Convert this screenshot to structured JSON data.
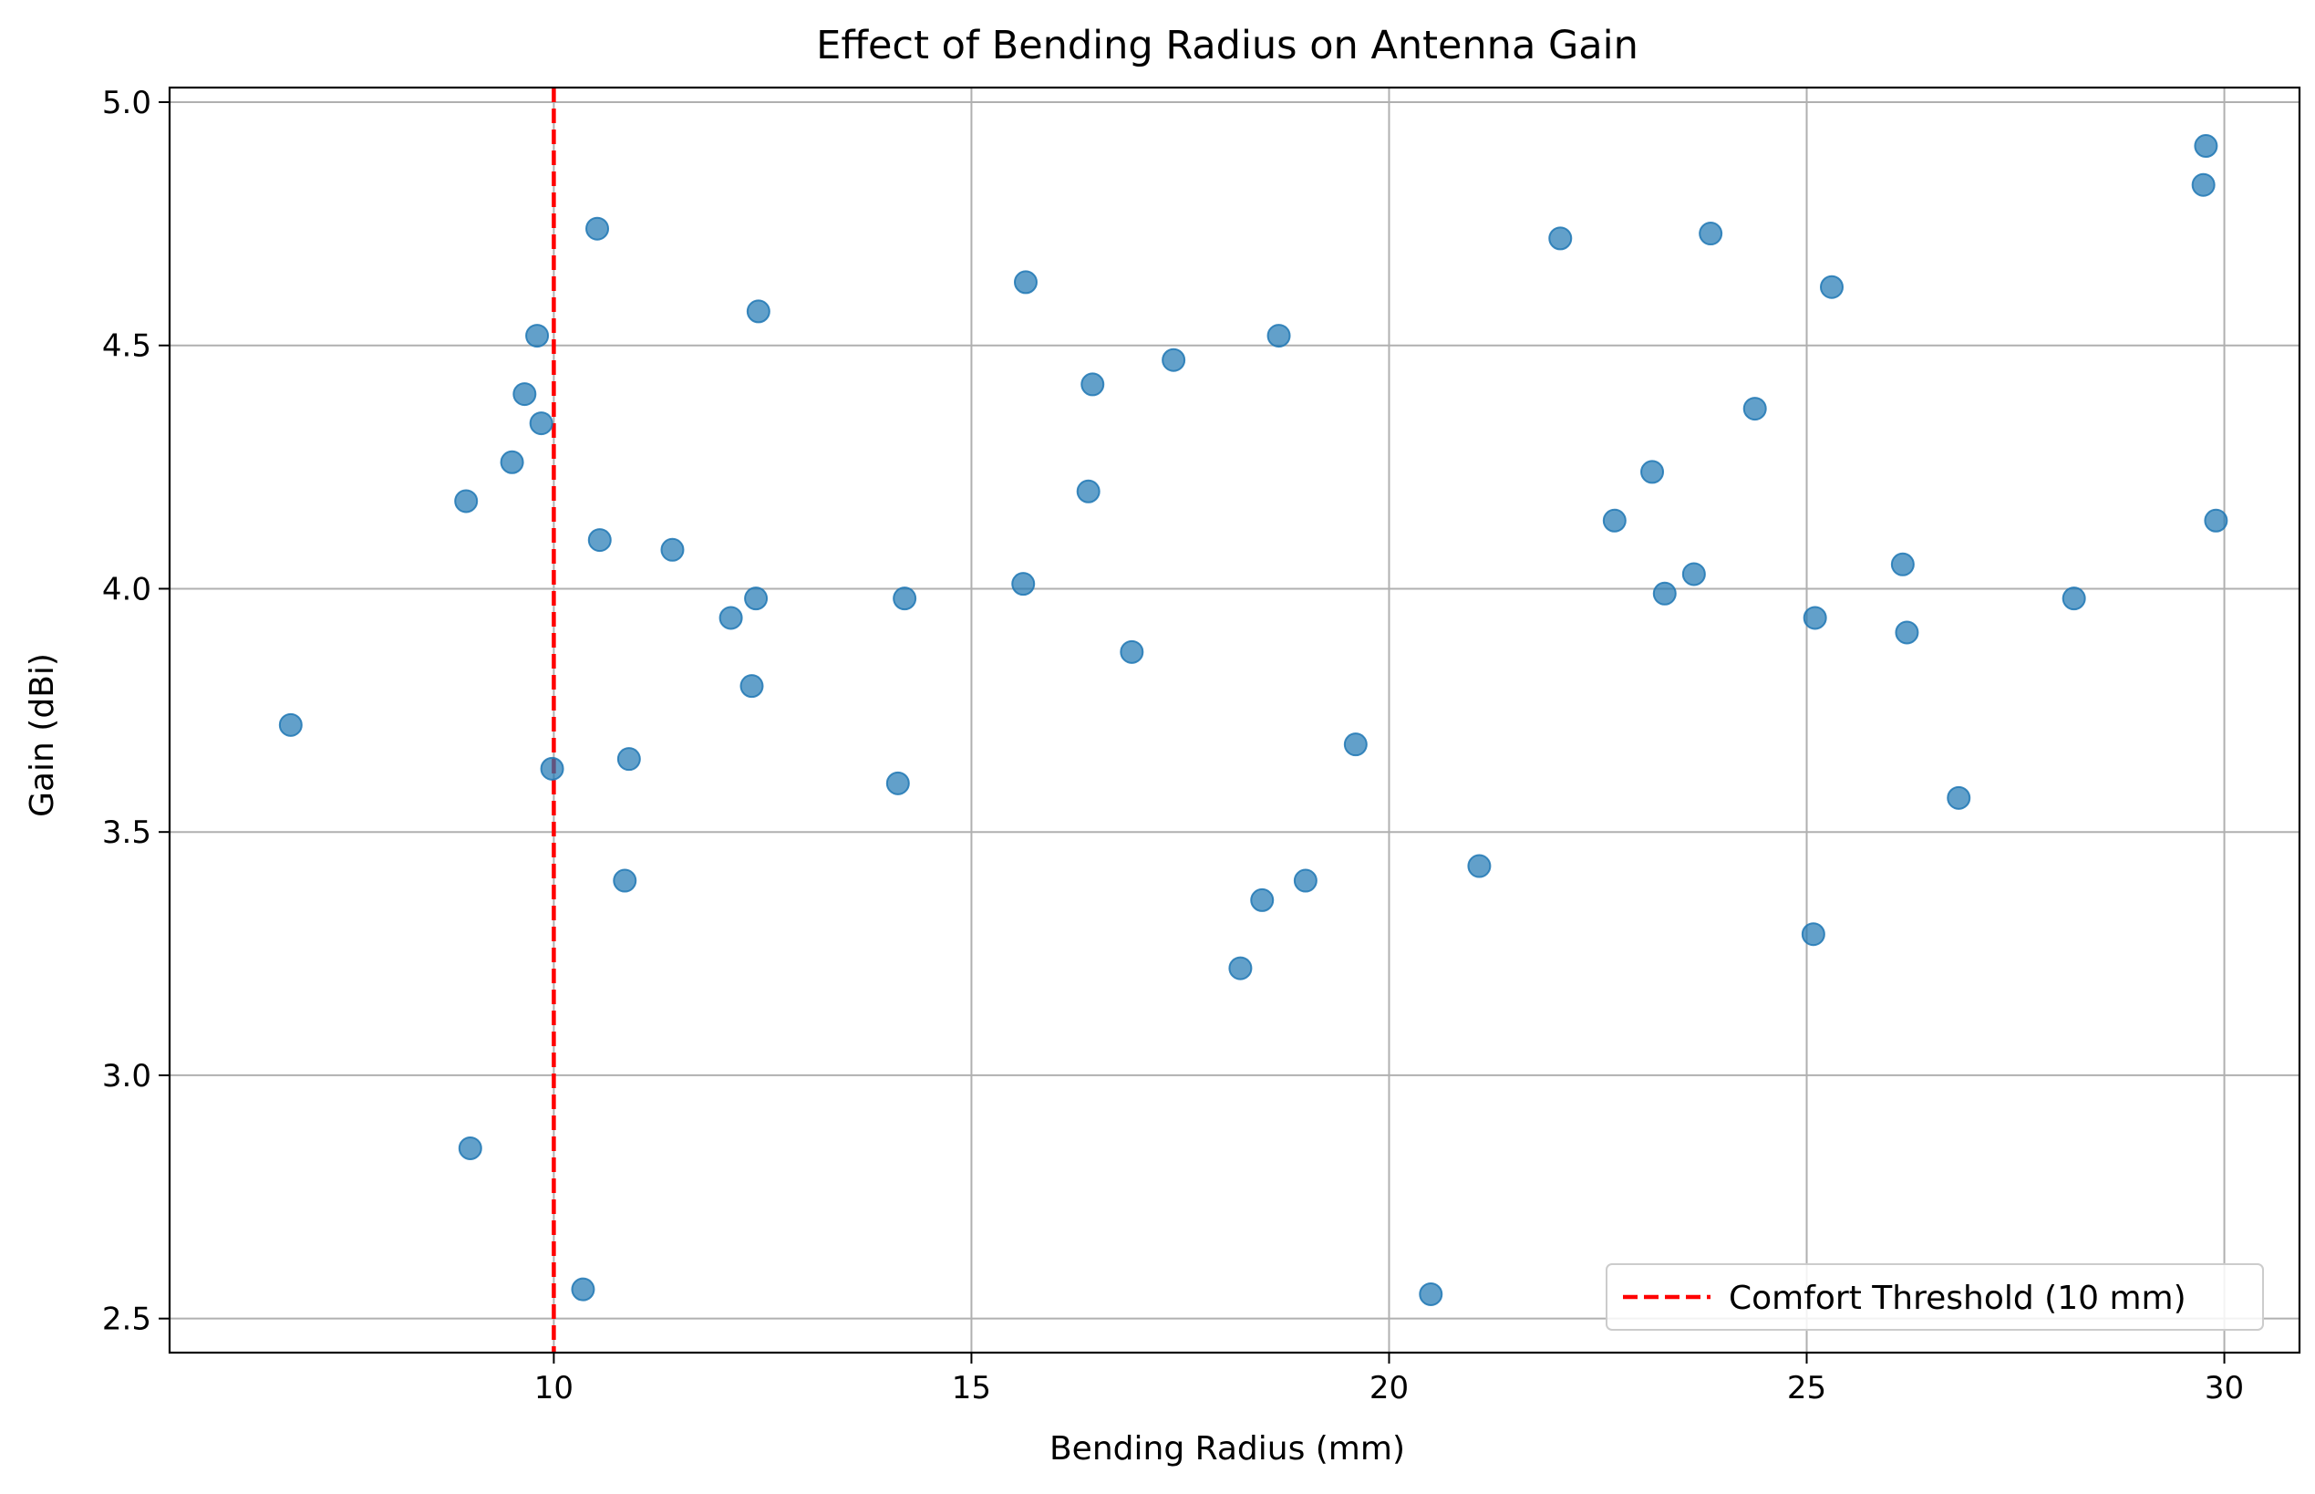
{
  "chart_data": {
    "type": "scatter",
    "title": "Effect of Bending Radius on Antenna Gain",
    "xlabel": "Bending Radius (mm)",
    "ylabel": "Gain (dBi)",
    "xlim": [
      5.4,
      30.9
    ],
    "ylim": [
      2.43,
      5.03
    ],
    "xticks": [
      10,
      15,
      20,
      25,
      30
    ],
    "yticks": [
      2.5,
      3.0,
      3.5,
      4.0,
      4.5,
      5.0
    ],
    "xtick_labels": [
      "10",
      "15",
      "20",
      "25",
      "30"
    ],
    "ytick_labels": [
      "2.5",
      "3.0",
      "3.5",
      "4.0",
      "4.5",
      "5.0"
    ],
    "grid": true,
    "legend_position": "lower-right",
    "point_color": "#1f77b4",
    "threshold": {
      "x": 10,
      "label": "Comfort Threshold (10 mm)",
      "color": "#ff0000",
      "style": "dashed"
    },
    "series": [
      {
        "points": [
          [
            6.85,
            3.72
          ],
          [
            8.95,
            4.18
          ],
          [
            9.0,
            2.85
          ],
          [
            9.5,
            4.26
          ],
          [
            9.65,
            4.4
          ],
          [
            9.8,
            4.52
          ],
          [
            9.85,
            4.34
          ],
          [
            9.98,
            3.63
          ],
          [
            10.35,
            2.56
          ],
          [
            10.52,
            4.74
          ],
          [
            10.55,
            4.1
          ],
          [
            10.85,
            3.4
          ],
          [
            10.9,
            3.65
          ],
          [
            11.42,
            4.08
          ],
          [
            12.12,
            3.94
          ],
          [
            12.37,
            3.8
          ],
          [
            12.42,
            3.98
          ],
          [
            12.45,
            4.57
          ],
          [
            14.12,
            3.6
          ],
          [
            14.2,
            3.98
          ],
          [
            15.62,
            4.01
          ],
          [
            15.65,
            4.63
          ],
          [
            16.4,
            4.2
          ],
          [
            16.45,
            4.42
          ],
          [
            16.92,
            3.87
          ],
          [
            17.42,
            4.47
          ],
          [
            18.22,
            3.22
          ],
          [
            18.48,
            3.36
          ],
          [
            18.68,
            4.52
          ],
          [
            19.0,
            3.4
          ],
          [
            19.6,
            3.68
          ],
          [
            20.5,
            2.55
          ],
          [
            21.08,
            3.43
          ],
          [
            22.05,
            4.72
          ],
          [
            22.7,
            4.14
          ],
          [
            23.15,
            4.24
          ],
          [
            23.3,
            3.99
          ],
          [
            23.65,
            4.03
          ],
          [
            23.85,
            4.73
          ],
          [
            24.38,
            4.37
          ],
          [
            25.08,
            3.29
          ],
          [
            25.1,
            3.94
          ],
          [
            25.3,
            4.62
          ],
          [
            26.15,
            4.05
          ],
          [
            26.2,
            3.91
          ],
          [
            26.82,
            3.57
          ],
          [
            28.2,
            3.98
          ],
          [
            29.75,
            4.83
          ],
          [
            29.78,
            4.91
          ],
          [
            29.9,
            4.14
          ]
        ]
      }
    ]
  }
}
